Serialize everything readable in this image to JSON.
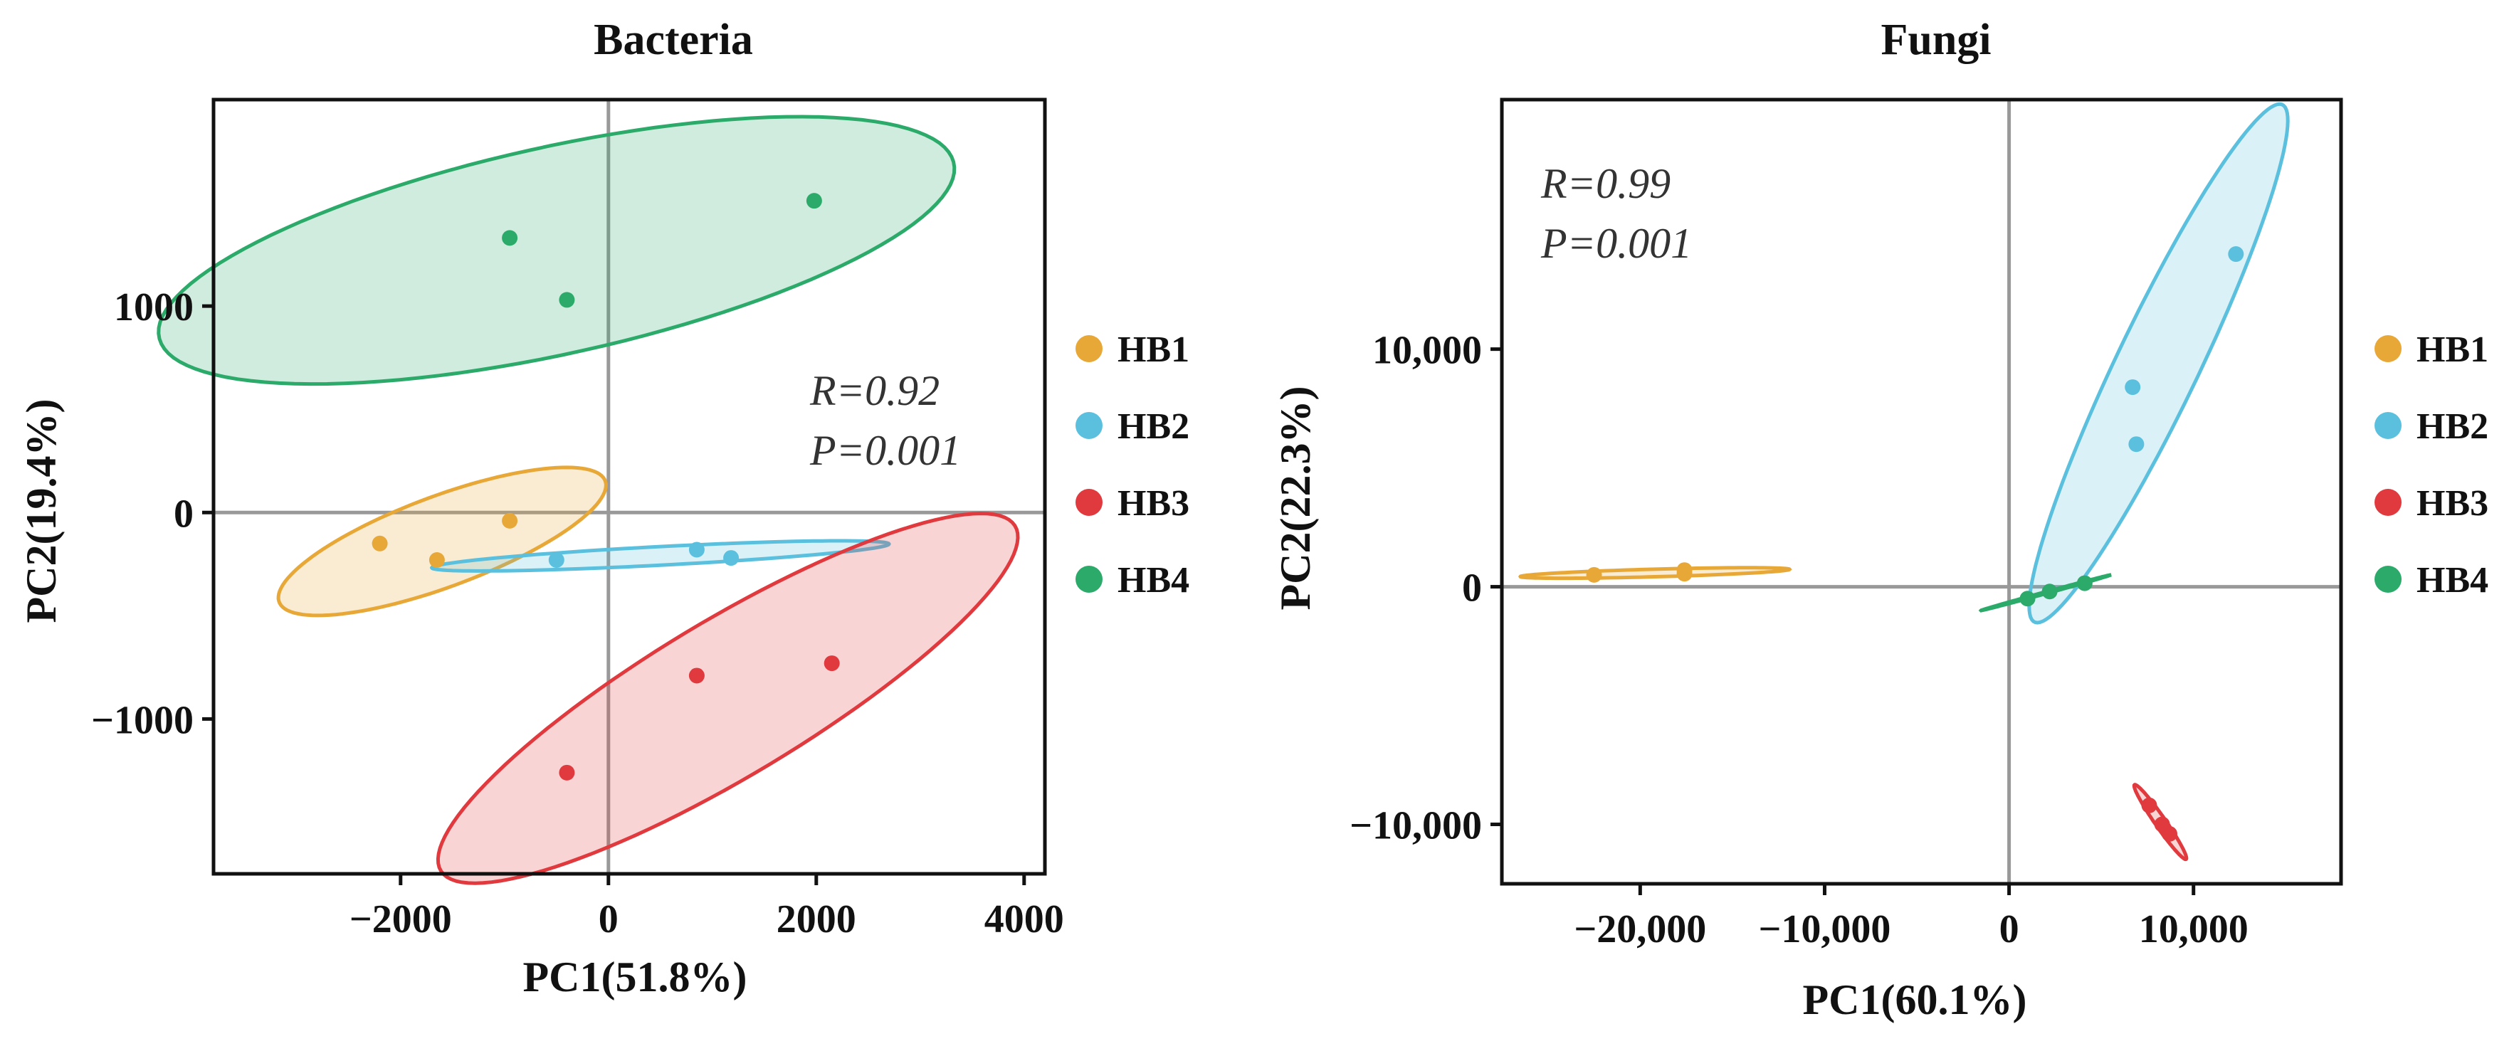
{
  "colors": {
    "HB1": "#E8A838",
    "HB2": "#5BC0DE",
    "HB3": "#E0393E",
    "HB4": "#2BAA6A",
    "axis": "#111111",
    "zero_line": "#999999"
  },
  "chart_data": [
    {
      "type": "scatter",
      "title": "Bacteria",
      "xlabel": "PC1(51.8%)",
      "ylabel": "PC2(19.4%)",
      "xlim": [
        -3800,
        4200
      ],
      "ylim": [
        -1750,
        2000
      ],
      "xticks": [
        -2000,
        0,
        2000,
        4000
      ],
      "xtick_labels": [
        "−2000",
        "0",
        "2000",
        "4000"
      ],
      "yticks": [
        -1000,
        0,
        1000
      ],
      "ytick_labels": [
        "−1000",
        "0",
        "1000"
      ],
      "stat_r": "R=0.92",
      "stat_p": "P=0.001",
      "legend": [
        "HB1",
        "HB2",
        "HB3",
        "HB4"
      ],
      "series": [
        {
          "name": "HB1",
          "points": [
            [
              -2200,
              -150
            ],
            [
              -1650,
              -230
            ],
            [
              -950,
              -40
            ]
          ],
          "ellipse": {
            "cx": -1600,
            "cy": -140,
            "a": 1600,
            "b": 230,
            "angle_deg": 10
          }
        },
        {
          "name": "HB2",
          "points": [
            [
              -500,
              -230
            ],
            [
              850,
              -180
            ],
            [
              1180,
              -220
            ]
          ],
          "ellipse": {
            "cx": 500,
            "cy": -210,
            "a": 2200,
            "b": 45,
            "angle_deg": 1.5
          }
        },
        {
          "name": "HB3",
          "points": [
            [
              -400,
              -1260
            ],
            [
              850,
              -790
            ],
            [
              2150,
              -730
            ]
          ],
          "ellipse": {
            "cx": 1150,
            "cy": -900,
            "a": 2900,
            "b": 420,
            "angle_deg": 16
          }
        },
        {
          "name": "HB4",
          "points": [
            [
              -950,
              1330
            ],
            [
              -400,
              1030
            ],
            [
              1980,
              1510
            ]
          ],
          "ellipse": {
            "cx": -500,
            "cy": 1270,
            "a": 3850,
            "b": 510,
            "angle_deg": 6
          }
        }
      ]
    },
    {
      "type": "scatter",
      "title": "Fungi",
      "xlabel": "PC1(60.1%)",
      "ylabel": "PC2(22.3%)",
      "xlim": [
        -27500,
        18000
      ],
      "ylim": [
        -12500,
        20500
      ],
      "xticks": [
        -20000,
        -10000,
        0,
        10000
      ],
      "xtick_labels": [
        "−20,000",
        "−10,000",
        "0",
        "10,000"
      ],
      "yticks": [
        -10000,
        0,
        10000
      ],
      "ytick_labels": [
        "−10,000",
        "0",
        "10,000"
      ],
      "stat_r": "R=0.99",
      "stat_p": "P=0.001",
      "legend": [
        "HB1",
        "HB2",
        "HB3",
        "HB4"
      ],
      "series": [
        {
          "name": "HB1",
          "points": [
            [
              -22500,
              500
            ],
            [
              -17600,
              550
            ],
            [
              -17600,
              700
            ]
          ],
          "ellipse": {
            "cx": -19200,
            "cy": 580,
            "a": 7300,
            "b": 160,
            "angle_deg": 1.2
          }
        },
        {
          "name": "HB2",
          "points": [
            [
              6700,
              8400
            ],
            [
              6900,
              6000
            ],
            [
              12300,
              14000
            ]
          ],
          "ellipse": {
            "cx": 8100,
            "cy": 9400,
            "a": 12800,
            "b": 2100,
            "angle_deg": 58
          }
        },
        {
          "name": "HB3",
          "points": [
            [
              7600,
              -9200
            ],
            [
              8300,
              -10000
            ],
            [
              8700,
              -10400
            ]
          ],
          "ellipse": {
            "cx": 8200,
            "cy": -9900,
            "a": 2100,
            "b": 260,
            "angle_deg": -48
          }
        },
        {
          "name": "HB4",
          "points": [
            [
              1000,
              -500
            ],
            [
              2200,
              -200
            ],
            [
              4100,
              150
            ]
          ],
          "ellipse": {
            "cx": 2000,
            "cy": -250,
            "a": 3600,
            "b": 40,
            "angle_deg": 12
          }
        }
      ]
    }
  ]
}
